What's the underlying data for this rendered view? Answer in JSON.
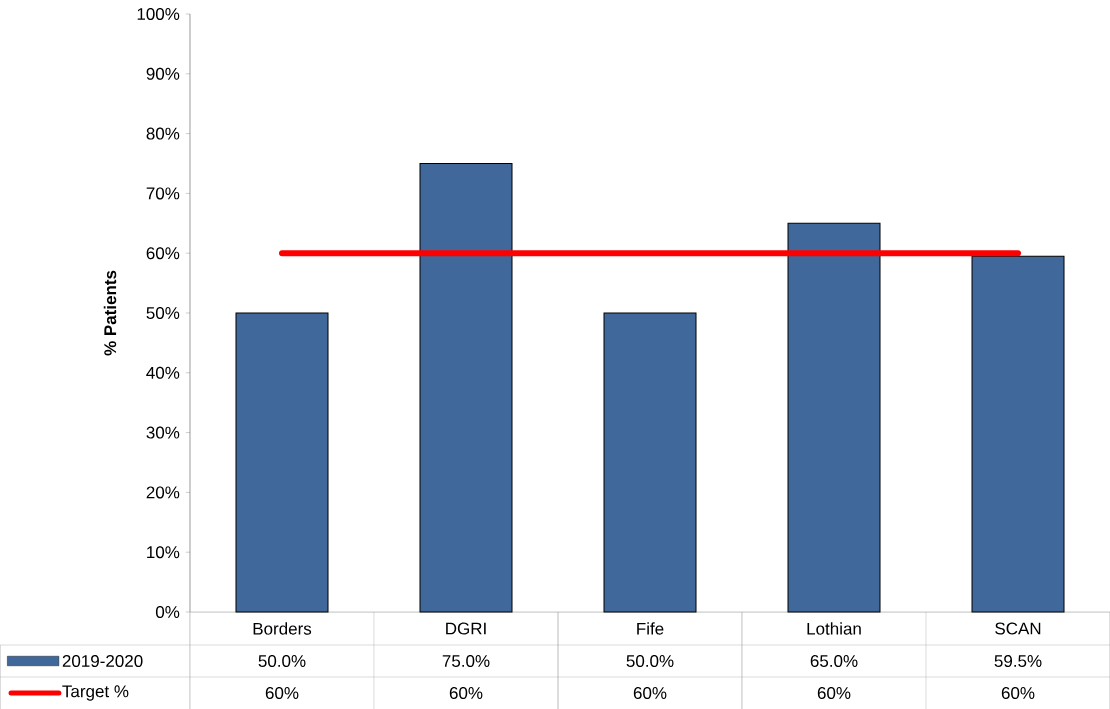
{
  "chart_data": {
    "type": "bar",
    "categories": [
      "Borders",
      "DGRI",
      "Fife",
      "Lothian",
      "SCAN"
    ],
    "ylabel": "% Patients",
    "ylim": [
      0,
      100
    ],
    "yticks": [
      {
        "value": 0,
        "label": "0%"
      },
      {
        "value": 10,
        "label": "10%"
      },
      {
        "value": 20,
        "label": "20%"
      },
      {
        "value": 30,
        "label": "30%"
      },
      {
        "value": 40,
        "label": "40%"
      },
      {
        "value": 50,
        "label": "50%"
      },
      {
        "value": 60,
        "label": "60%"
      },
      {
        "value": 70,
        "label": "70%"
      },
      {
        "value": 80,
        "label": "80%"
      },
      {
        "value": 90,
        "label": "90%"
      },
      {
        "value": 100,
        "label": "100%"
      }
    ],
    "series": [
      {
        "name": "2019-2020",
        "color": "#41689a",
        "values": [
          50,
          75,
          50,
          65,
          59.5
        ],
        "value_labels": [
          "50.0%",
          "75.0%",
          "50.0%",
          "65.0%",
          "59.5%"
        ]
      },
      {
        "name": "Target %",
        "type": "line",
        "color": "#ff0000",
        "values": [
          60,
          60,
          60,
          60,
          60
        ],
        "value_labels": [
          "60%",
          "60%",
          "60%",
          "60%",
          "60%"
        ]
      }
    ],
    "legend": "bottom",
    "marker": "none",
    "line_style": "solid",
    "grid": false
  }
}
